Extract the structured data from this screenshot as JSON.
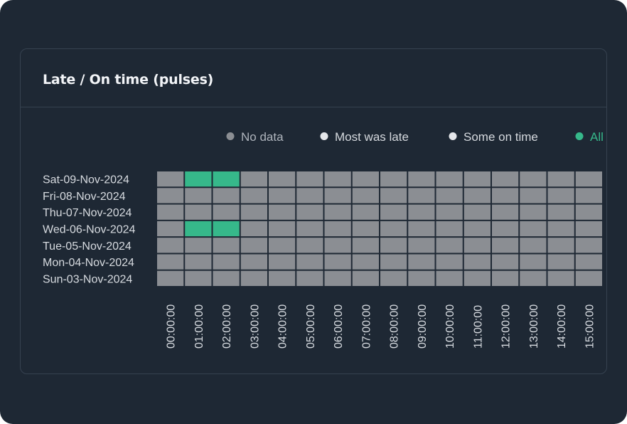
{
  "card": {
    "title": "Late / On time (pulses)"
  },
  "chart_data": {
    "type": "heatmap",
    "title": "Late / On time (pulses)",
    "legend": {
      "placement": "top-right",
      "items": [
        {
          "label": "No data",
          "color": "#8b8e93",
          "text_color": "#aeb4bc"
        },
        {
          "label": "Most was late",
          "color": "#e5e7eb",
          "text_color": "#d5d9de"
        },
        {
          "label": "Some on time",
          "color": "#e5e7eb",
          "text_color": "#d5d9de"
        },
        {
          "label": "All",
          "color": "#36b88a",
          "text_color": "#36b88a"
        }
      ]
    },
    "y_categories": [
      "Sat-09-Nov-2024",
      "Fri-08-Nov-2024",
      "Thu-07-Nov-2024",
      "Wed-06-Nov-2024",
      "Tue-05-Nov-2024",
      "Mon-04-Nov-2024",
      "Sun-03-Nov-2024"
    ],
    "x_categories": [
      "00:00:00",
      "01:00:00",
      "02:00:00",
      "03:00:00",
      "04:00:00",
      "05:00:00",
      "06:00:00",
      "07:00:00",
      "08:00:00",
      "09:00:00",
      "10:00:00",
      "11:00:00",
      "12:00:00",
      "13:00:00",
      "14:00:00",
      "15:00:00"
    ],
    "values": [
      [
        "No data",
        "All",
        "All",
        "No data",
        "No data",
        "No data",
        "No data",
        "No data",
        "No data",
        "No data",
        "No data",
        "No data",
        "No data",
        "No data",
        "No data",
        "No data"
      ],
      [
        "No data",
        "No data",
        "No data",
        "No data",
        "No data",
        "No data",
        "No data",
        "No data",
        "No data",
        "No data",
        "No data",
        "No data",
        "No data",
        "No data",
        "No data",
        "No data"
      ],
      [
        "No data",
        "No data",
        "No data",
        "No data",
        "No data",
        "No data",
        "No data",
        "No data",
        "No data",
        "No data",
        "No data",
        "No data",
        "No data",
        "No data",
        "No data",
        "No data"
      ],
      [
        "No data",
        "All",
        "All",
        "No data",
        "No data",
        "No data",
        "No data",
        "No data",
        "No data",
        "No data",
        "No data",
        "No data",
        "No data",
        "No data",
        "No data",
        "No data"
      ],
      [
        "No data",
        "No data",
        "No data",
        "No data",
        "No data",
        "No data",
        "No data",
        "No data",
        "No data",
        "No data",
        "No data",
        "No data",
        "No data",
        "No data",
        "No data",
        "No data"
      ],
      [
        "No data",
        "No data",
        "No data",
        "No data",
        "No data",
        "No data",
        "No data",
        "No data",
        "No data",
        "No data",
        "No data",
        "No data",
        "No data",
        "No data",
        "No data",
        "No data"
      ],
      [
        "No data",
        "No data",
        "No data",
        "No data",
        "No data",
        "No data",
        "No data",
        "No data",
        "No data",
        "No data",
        "No data",
        "No data",
        "No data",
        "No data",
        "No data",
        "No data"
      ]
    ],
    "colors": {
      "background": "#1e2834",
      "label": "#d7dbe0"
    }
  }
}
